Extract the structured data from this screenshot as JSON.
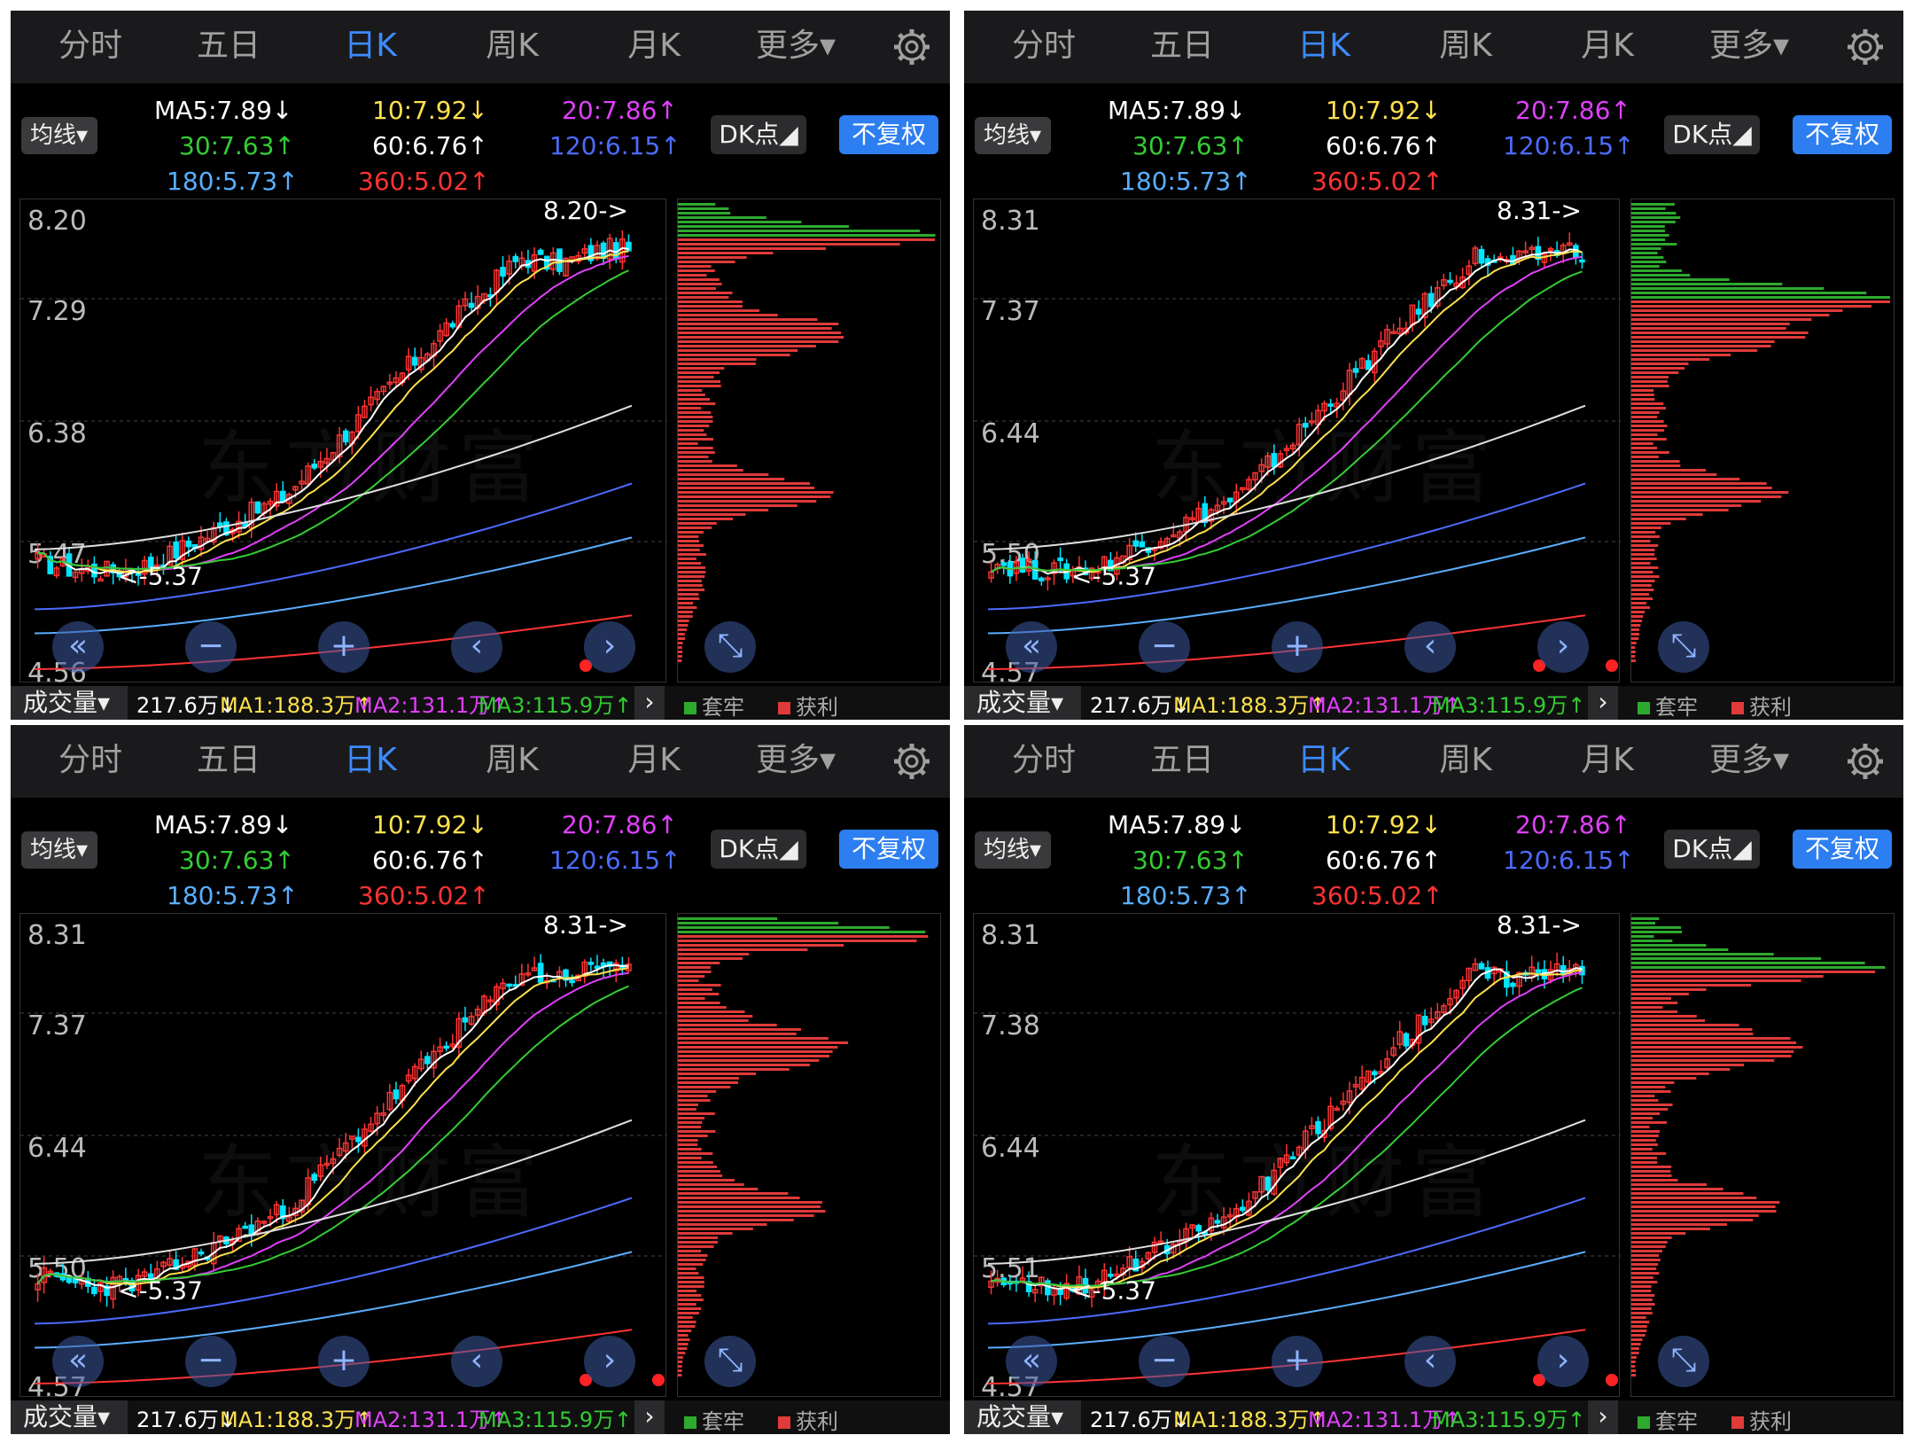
{
  "tabs": [
    "分时",
    "五日",
    "日K",
    "周K",
    "月K",
    "更多▾"
  ],
  "active_tab": "日K",
  "controls": {
    "indicator": "均线▾",
    "dk": "DK点◢",
    "adjust": "不复权"
  },
  "ma_labels": [
    {
      "text": "MA5:7.89↓",
      "color": "#ffffff"
    },
    {
      "text": "10:7.92↓",
      "color": "#ffe14d"
    },
    {
      "text": "20:7.86↑",
      "color": "#e040fb"
    },
    {
      "text": "30:7.63↑",
      "color": "#33cc33"
    },
    {
      "text": "60:6.76↑",
      "color": "#ffffff"
    },
    {
      "text": "120:6.15↑",
      "color": "#4d6bff"
    },
    {
      "text": "180:5.73↑",
      "color": "#5aaeff"
    },
    {
      "text": "360:5.02↑",
      "color": "#ff3333"
    }
  ],
  "volume": {
    "button": "成交量▾",
    "value": "217.6万↓",
    "ma1": "MA1:188.3万↑",
    "ma2": "MA2:131.1万↑",
    "ma3": "MA3:115.9万↑"
  },
  "chip_legend": {
    "trapped": "套牢",
    "profit": "获利"
  },
  "watermark": "东方财富",
  "panels": [
    {
      "id": 1,
      "y_top": "8.20",
      "y_mid1": "7.29",
      "y_mid2": "6.38",
      "y_low": "5.47",
      "y_bottom": "4.56",
      "high_label": "8.20->",
      "low_label": "<-5.37"
    },
    {
      "id": 2,
      "y_top": "8.31",
      "y_mid1": "7.37",
      "y_mid2": "6.44",
      "y_low": "5.50",
      "y_bottom": "4.57",
      "high_label": "8.31->",
      "low_label": "<-5.37"
    },
    {
      "id": 3,
      "y_top": "8.31",
      "y_mid1": "7.37",
      "y_mid2": "6.44",
      "y_low": "5.50",
      "y_bottom": "4.57",
      "high_label": "8.31->",
      "low_label": "<-5.37"
    },
    {
      "id": 4,
      "y_top": "8.31",
      "y_mid1": "7.38",
      "y_mid2": "6.44",
      "y_low": "5.51",
      "y_bottom": "4.57",
      "high_label": "8.31->",
      "low_label": "<-5.37"
    }
  ],
  "nav_buttons": [
    "«",
    "−",
    "+",
    "‹",
    "›",
    "⤡"
  ],
  "colors": {
    "accent": "#3d8bff",
    "up": "#ff3333",
    "down": "#00e5ff",
    "chip_profit": "#e03a3a",
    "chip_trapped": "#2eaa2e"
  }
}
